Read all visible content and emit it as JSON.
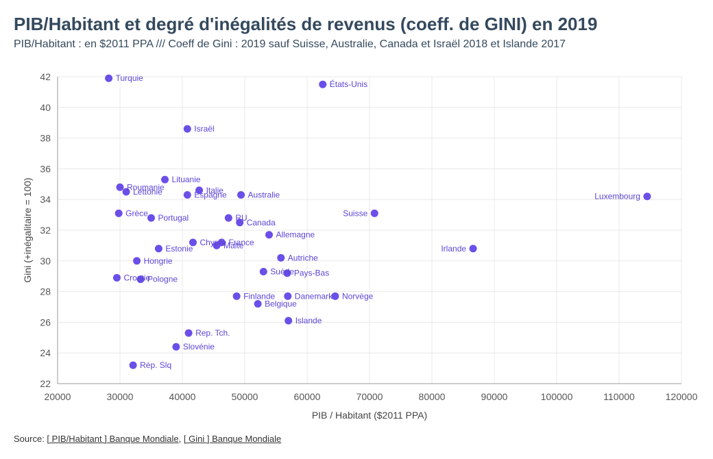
{
  "title": "PIB/Habitant et degré d'inégalités de revenus (coeff. de GINI) en 2019",
  "subtitle": "PIB/Habitant : en $2011 PPA /// Coeff de Gini : 2019 sauf Suisse, Australie, Canada et Israël 2018 et Islande 2017",
  "source": {
    "prefix": "Source: ",
    "link1": "[ PIB/Habitant ] Banque Mondiale",
    "separator": ", ",
    "link2": "[ Gini ] Banque Mondiale"
  },
  "colors": {
    "point": "#6a4fe8",
    "label": "#5b45d6",
    "grid": "#e8e8e8",
    "title": "#34495e"
  },
  "chart_data": {
    "type": "scatter",
    "title": "PIB/Habitant et degré d'inégalités de revenus (coeff. de GINI) en 2019",
    "xlabel": "PIB / Habitant ($2011 PPA)",
    "ylabel": "Gini (+inégalitaire = 100)",
    "xlim": [
      20000,
      120000
    ],
    "ylim": [
      22,
      42
    ],
    "xticks": [
      20000,
      30000,
      40000,
      50000,
      60000,
      70000,
      80000,
      90000,
      100000,
      110000,
      120000
    ],
    "yticks": [
      22,
      24,
      26,
      28,
      30,
      32,
      34,
      36,
      38,
      40,
      42
    ],
    "grid": true,
    "points": [
      {
        "label": "Turquie",
        "x": 28200,
        "y": 41.9
      },
      {
        "label": "États-Unis",
        "x": 62500,
        "y": 41.5
      },
      {
        "label": "Israël",
        "x": 40800,
        "y": 38.6
      },
      {
        "label": "Lituanie",
        "x": 37200,
        "y": 35.3
      },
      {
        "label": "Roumanie",
        "x": 30000,
        "y": 34.8
      },
      {
        "label": "Lettonie",
        "x": 31000,
        "y": 34.5
      },
      {
        "label": "Italie",
        "x": 42700,
        "y": 34.6
      },
      {
        "label": "Espagne",
        "x": 40800,
        "y": 34.3
      },
      {
        "label": "Australie",
        "x": 49400,
        "y": 34.3
      },
      {
        "label": "Luxembourg",
        "x": 114500,
        "y": 34.2
      },
      {
        "label": "Grèce",
        "x": 29800,
        "y": 33.1
      },
      {
        "label": "Suisse",
        "x": 70800,
        "y": 33.1
      },
      {
        "label": "Portugal",
        "x": 35000,
        "y": 32.8
      },
      {
        "label": "RU",
        "x": 47400,
        "y": 32.8
      },
      {
        "label": "Canada",
        "x": 49200,
        "y": 32.5
      },
      {
        "label": "Allemagne",
        "x": 53900,
        "y": 31.7
      },
      {
        "label": "Chypre",
        "x": 41700,
        "y": 31.2
      },
      {
        "label": "France",
        "x": 46300,
        "y": 31.2
      },
      {
        "label": "Malte",
        "x": 45500,
        "y": 31.0
      },
      {
        "label": "Estonie",
        "x": 36200,
        "y": 30.8
      },
      {
        "label": "Irlande",
        "x": 86600,
        "y": 30.8
      },
      {
        "label": "Autriche",
        "x": 55800,
        "y": 30.2
      },
      {
        "label": "Hongrie",
        "x": 32700,
        "y": 30.0
      },
      {
        "label": "Suède",
        "x": 53000,
        "y": 29.3
      },
      {
        "label": "Pays-Bas",
        "x": 56800,
        "y": 29.2
      },
      {
        "label": "Croatie",
        "x": 29500,
        "y": 28.9
      },
      {
        "label": "Pologne",
        "x": 33300,
        "y": 28.8
      },
      {
        "label": "Finlande",
        "x": 48700,
        "y": 27.7
      },
      {
        "label": "Danemark",
        "x": 56900,
        "y": 27.7
      },
      {
        "label": "Norvège",
        "x": 64500,
        "y": 27.7
      },
      {
        "label": "Belgique",
        "x": 52100,
        "y": 27.2
      },
      {
        "label": "Islande",
        "x": 57000,
        "y": 26.1
      },
      {
        "label": "Rep. Tch.",
        "x": 41000,
        "y": 25.3
      },
      {
        "label": "Slovénie",
        "x": 39000,
        "y": 24.4
      },
      {
        "label": "Rép. Slq",
        "x": 32100,
        "y": 23.2
      }
    ]
  }
}
